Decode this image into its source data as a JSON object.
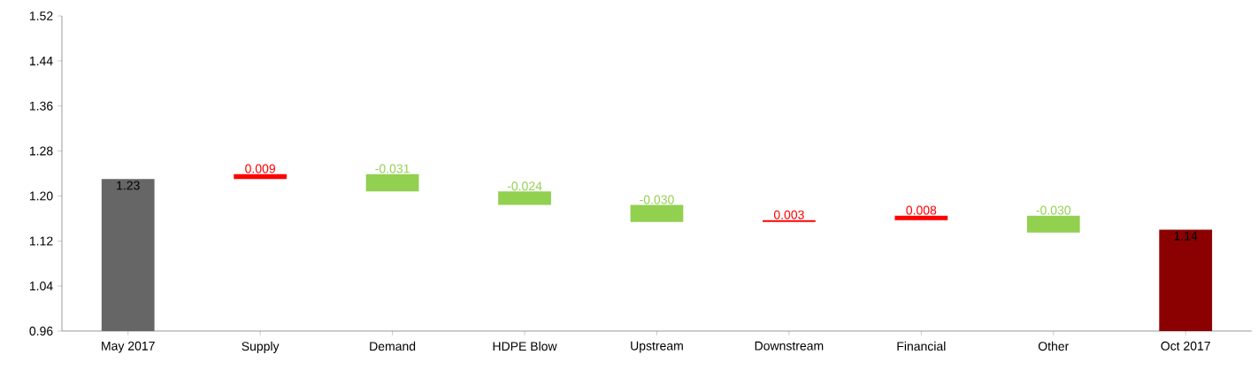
{
  "chart_data": {
    "type": "bar",
    "categories": [
      "May 2017",
      "Supply",
      "Demand",
      "HDPE Blow",
      "Upstream",
      "Downstream",
      "Financial",
      "Other",
      "Oct 2017"
    ],
    "values": [
      1.23,
      0.009,
      -0.031,
      -0.024,
      -0.03,
      0.003,
      0.008,
      -0.03,
      1.14
    ],
    "base": [
      null,
      1.23,
      1.239,
      1.208,
      1.184,
      1.154,
      1.157,
      1.165,
      null
    ],
    "colors": [
      "#666666",
      "#ff0000",
      "#92d050",
      "#92d050",
      "#92d050",
      "#ff0000",
      "#ff0000",
      "#92d050",
      "#8b0000"
    ],
    "value_labels": [
      "1.23",
      "0.009",
      "-0.031",
      "-0.024",
      "-0.030",
      "0.003",
      "0.008",
      "-0.030",
      "1.14"
    ],
    "ylim": [
      0.96,
      1.52
    ],
    "yticks": [
      0.96,
      1.04,
      1.12,
      {
        "value": 1.2,
        "label": "1.20"
      },
      1.28,
      1.36,
      1.44,
      1.52
    ],
    "grid": false
  }
}
